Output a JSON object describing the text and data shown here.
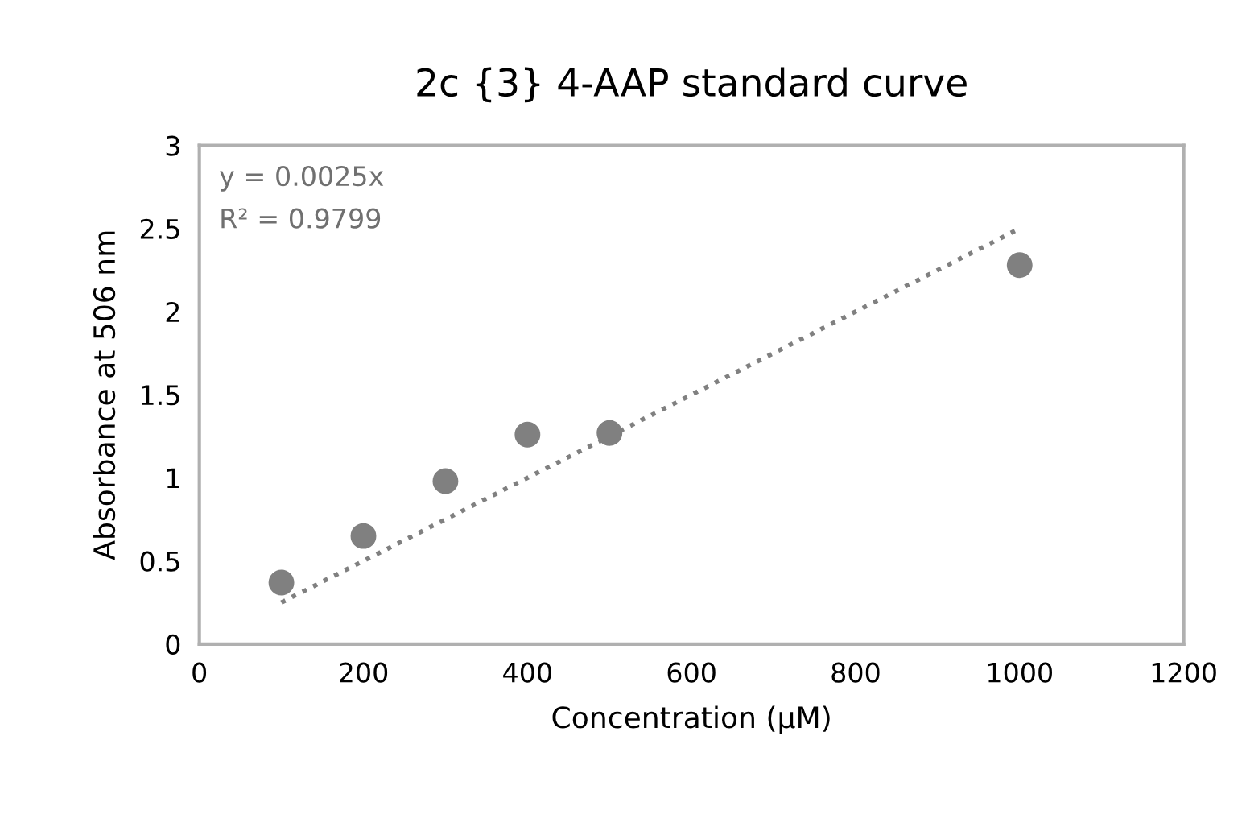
{
  "chart_data": {
    "type": "scatter",
    "title": "2c {3} 4-AAP standard curve",
    "xlabel": "Concentration (µM)",
    "ylabel": "Absorbance at 506 nm",
    "x": [
      100,
      200,
      300,
      400,
      500,
      1000
    ],
    "series": [
      {
        "color": "#808080",
        "marker": "circle",
        "values": [
          0.37,
          0.65,
          0.98,
          1.26,
          1.27,
          2.28
        ]
      },
      {
        "type": "line",
        "color": "#808080",
        "line_style": "dotted",
        "marker": "none",
        "x": [
          100,
          1000
        ],
        "values": [
          0.25,
          2.5
        ]
      }
    ],
    "annotations": [
      "y = 0.0025x",
      "R² = 0.9799"
    ],
    "xlim": [
      0,
      1200
    ],
    "xticks": [
      0,
      200,
      400,
      600,
      800,
      1000,
      1200
    ],
    "ylim": [
      0,
      3
    ],
    "yticks": [
      0,
      0.5,
      1,
      1.5,
      2,
      2.5,
      3
    ],
    "grid": false,
    "legend": false
  }
}
